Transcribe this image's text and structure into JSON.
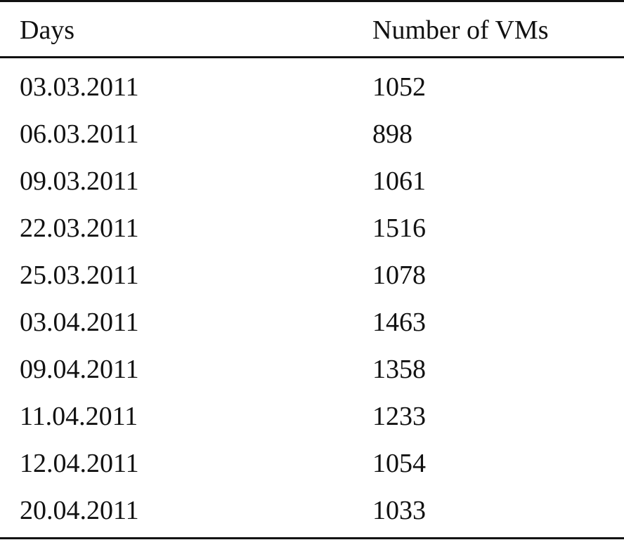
{
  "table": {
    "columns": [
      "Days",
      "Number of VMs"
    ],
    "rows": [
      [
        "03.03.2011",
        "1052"
      ],
      [
        "06.03.2011",
        "898"
      ],
      [
        "09.03.2011",
        "1061"
      ],
      [
        "22.03.2011",
        "1516"
      ],
      [
        "25.03.2011",
        "1078"
      ],
      [
        "03.04.2011",
        "1463"
      ],
      [
        "09.04.2011",
        "1358"
      ],
      [
        "11.04.2011",
        "1233"
      ],
      [
        "12.04.2011",
        "1054"
      ],
      [
        "20.04.2011",
        "1033"
      ]
    ]
  }
}
